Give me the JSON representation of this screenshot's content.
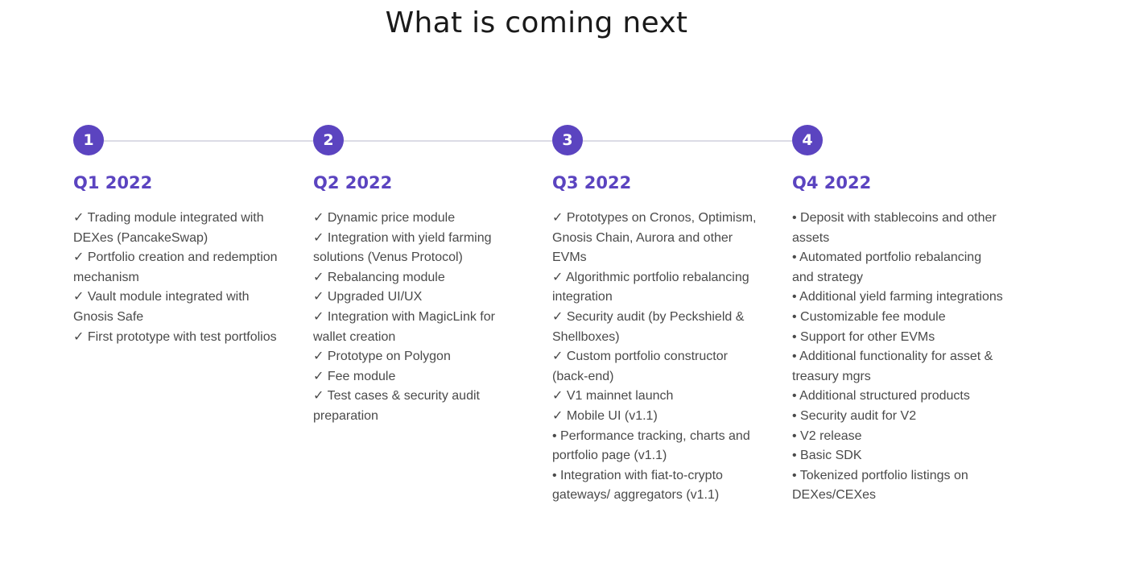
{
  "page": {
    "title": "What is coming next"
  },
  "accent_color": "#5b44c0",
  "columns": [
    {
      "step": "1",
      "quarter": "Q1 2022",
      "items": [
        "✓ Trading module integrated with DEXes (PancakeSwap)",
        "✓ Portfolio creation and redemption mechanism",
        "✓ Vault module integrated with Gnosis Safe",
        "✓ First prototype with test portfolios"
      ]
    },
    {
      "step": "2",
      "quarter": "Q2 2022",
      "items": [
        "✓ Dynamic price module",
        "✓ Integration with yield farming solutions (Venus Protocol)",
        "✓ Rebalancing module",
        "✓ Upgraded UI/UX",
        "✓ Integration with MagicLink for wallet creation",
        "✓ Prototype on Polygon",
        "✓ Fee module",
        "✓ Test cases & security audit preparation"
      ]
    },
    {
      "step": "3",
      "quarter": "Q3 2022",
      "items": [
        "✓ Prototypes on Cronos, Optimism, Gnosis Chain, Aurora and other EVMs",
        "✓ Algorithmic portfolio rebalancing integration",
        "✓ Security audit (by Peckshield & Shellboxes)",
        "✓ Custom portfolio constructor (back-end)",
        "✓ V1 mainnet launch",
        "✓ Mobile UI (v1.1)",
        "• Performance tracking, charts and portfolio page (v1.1)",
        "• Integration with fiat-to-crypto gateways/ aggregators (v1.1)"
      ]
    },
    {
      "step": "4",
      "quarter": "Q4 2022",
      "items": [
        "• Deposit with stablecoins and other assets",
        "• Automated portfolio rebalancing and strategy",
        "• Additional yield farming integrations",
        "• Customizable fee module",
        "• Support for other EVMs",
        "• Additional functionality for asset & treasury mgrs",
        "• Additional structured products",
        "• Security audit for V2",
        "• V2 release",
        "• Basic SDK",
        "• Tokenized portfolio listings on DEXes/CEXes"
      ]
    }
  ]
}
